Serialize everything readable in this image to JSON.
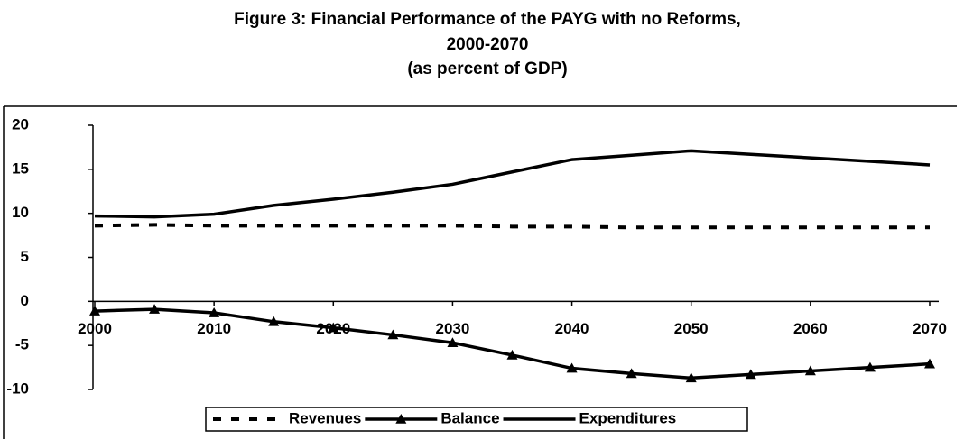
{
  "chart_data": {
    "type": "line",
    "title": "Figure 3:  Financial Performance of the PAYG with no Reforms,",
    "subtitle": "2000-2070",
    "annotation": "(as percent of GDP)",
    "x": [
      2000,
      2005,
      2010,
      2015,
      2020,
      2025,
      2030,
      2035,
      2040,
      2045,
      2050,
      2055,
      2060,
      2065,
      2070
    ],
    "xlim": [
      2000,
      2070
    ],
    "xticks": [
      2000,
      2010,
      2020,
      2030,
      2040,
      2050,
      2060,
      2070
    ],
    "ylim": [
      -10,
      20
    ],
    "yticks": [
      -10,
      -5,
      0,
      5,
      10,
      15,
      20
    ],
    "legend": "bottom",
    "series": [
      {
        "name": "Revenues",
        "color": "#000000",
        "style": "dashed",
        "values": [
          8.6,
          8.7,
          8.6,
          8.6,
          8.6,
          8.6,
          8.6,
          8.5,
          8.5,
          8.4,
          8.4,
          8.4,
          8.4,
          8.4,
          8.4
        ]
      },
      {
        "name": "Balance",
        "color": "#000000",
        "marker": "triangle",
        "values": [
          -1.1,
          -0.9,
          -1.3,
          -2.3,
          -3.0,
          -3.8,
          -4.7,
          -6.1,
          -7.6,
          -8.2,
          -8.7,
          -8.3,
          -7.9,
          -7.5,
          -7.1
        ]
      },
      {
        "name": "Expenditures",
        "color": "#000000",
        "values": [
          9.7,
          9.6,
          9.9,
          10.9,
          11.6,
          12.4,
          13.3,
          14.7,
          16.1,
          16.6,
          17.1,
          16.7,
          16.3,
          15.9,
          15.5
        ]
      }
    ]
  }
}
